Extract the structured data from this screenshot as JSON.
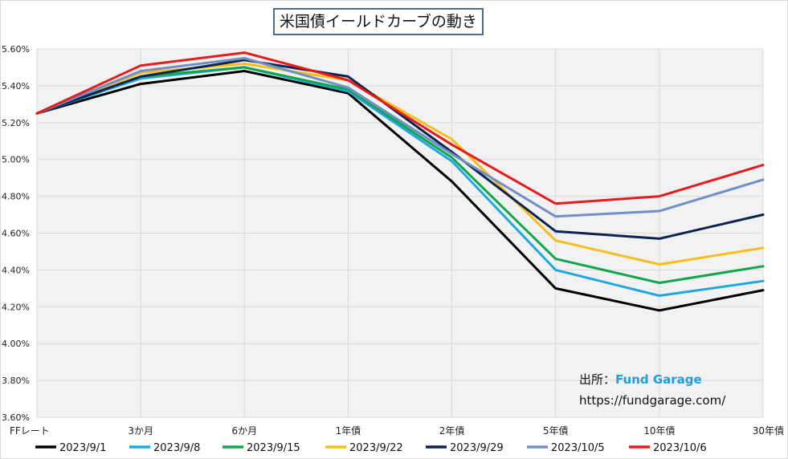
{
  "chart_data": {
    "type": "line",
    "title": "米国債イールドカーブの動き",
    "categories": [
      "FFレート",
      "3か月",
      "6か月",
      "1年債",
      "2年債",
      "5年債",
      "10年債",
      "30年債"
    ],
    "ylim": [
      3.6,
      5.6
    ],
    "yticks": [
      "3.60%",
      "3.80%",
      "4.00%",
      "4.20%",
      "4.40%",
      "4.60%",
      "4.80%",
      "5.00%",
      "5.20%",
      "5.40%",
      "5.60%"
    ],
    "grid": true,
    "legend": "bottom",
    "series": [
      {
        "name": "2023/9/1",
        "color": "#000000",
        "values": [
          5.25,
          5.41,
          5.48,
          5.36,
          4.88,
          4.3,
          4.18,
          4.29
        ]
      },
      {
        "name": "2023/9/8",
        "color": "#1ea7e1",
        "values": [
          5.25,
          5.44,
          5.5,
          5.37,
          4.99,
          4.4,
          4.26,
          4.34
        ]
      },
      {
        "name": "2023/9/15",
        "color": "#10a64a",
        "values": [
          5.25,
          5.45,
          5.5,
          5.38,
          5.01,
          4.46,
          4.33,
          4.42
        ]
      },
      {
        "name": "2023/9/22",
        "color": "#f7bd1a",
        "values": [
          5.25,
          5.47,
          5.52,
          5.43,
          5.11,
          4.56,
          4.43,
          4.52
        ]
      },
      {
        "name": "2023/9/29",
        "color": "#0c2350",
        "values": [
          5.25,
          5.45,
          5.54,
          5.45,
          5.04,
          4.61,
          4.57,
          4.7
        ]
      },
      {
        "name": "2023/10/5",
        "color": "#6f8fc6",
        "values": [
          5.25,
          5.48,
          5.55,
          5.39,
          5.03,
          4.69,
          4.72,
          4.89
        ]
      },
      {
        "name": "2023/10/6",
        "color": "#e61b1b",
        "values": [
          5.25,
          5.51,
          5.58,
          5.43,
          5.08,
          4.76,
          4.8,
          4.97
        ]
      }
    ]
  },
  "source": {
    "label": "出所：",
    "brand": "Fund Garage",
    "url": "https://fundgarage.com/"
  }
}
